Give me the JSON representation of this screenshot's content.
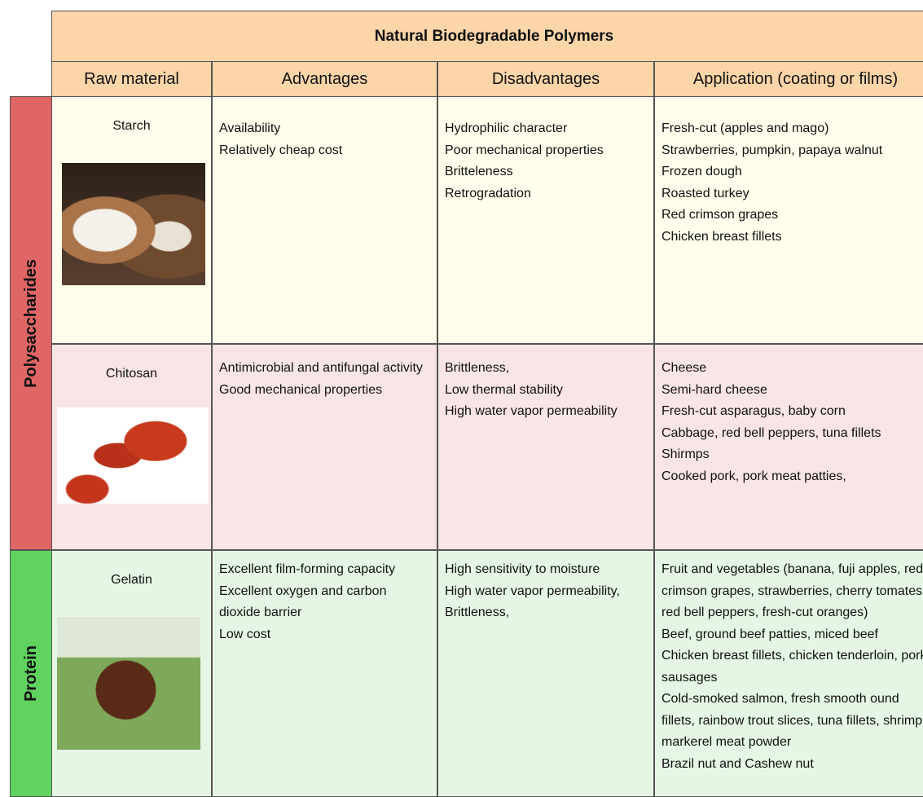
{
  "header": {
    "title": "Natural Biodegradable Polymers",
    "columns": [
      "Raw material",
      "Advantages",
      "Disadvantages",
      "Application (coating or films)"
    ]
  },
  "groups": [
    {
      "label": "Polysaccharides",
      "rows": [
        {
          "material": "Starch",
          "advantages": [
            "Availability",
            "Relatively cheap cost"
          ],
          "disadvantages": [
            "Hydrophilic character",
            "Poor mechanical properties",
            "Britteleness",
            "Retrogradation"
          ],
          "applications": [
            "Fresh-cut (apples and mago)",
            "Strawberries, pumpkin, papaya walnut",
            "Frozen dough",
            "Roasted turkey",
            "Red crimson grapes",
            "Chicken breast fillets"
          ]
        },
        {
          "material": "Chitosan",
          "advantages": [
            "Antimicrobial and antifungal activity",
            "Good mechanical properties"
          ],
          "disadvantages": [
            "Brittleness,",
            "Low thermal stability",
            "High water vapor permeability"
          ],
          "applications": [
            "Cheese",
            "Semi-hard cheese",
            "Fresh-cut asparagus, baby corn",
            "Cabbage, red bell peppers, tuna fillets",
            "Shirmps",
            "Cooked pork, pork meat patties,"
          ]
        }
      ]
    },
    {
      "label": "Protein",
      "rows": [
        {
          "material": "Gelatin",
          "advantages": [
            "Excellent film-forming capacity",
            "Excellent oxygen and carbon dioxide barrier",
            "Low cost"
          ],
          "disadvantages": [
            "High sensitivity to moisture",
            "High water vapor permeability,",
            "Brittleness,"
          ],
          "applications": [
            "Fruit and vegetables (banana, fuji apples, red crimson grapes, strawberries, cherry tomates, red bell peppers, fresh-cut oranges)",
            "Beef, ground beef patties, miced beef",
            "Chicken breast fillets, chicken tenderloin, pork sausages",
            "Cold-smoked salmon, fresh smooth ound fillets, rainbow trout slices, tuna fillets, shrimp, markerel meat powder",
            "Brazil nut and Cashew nut"
          ]
        }
      ]
    }
  ]
}
